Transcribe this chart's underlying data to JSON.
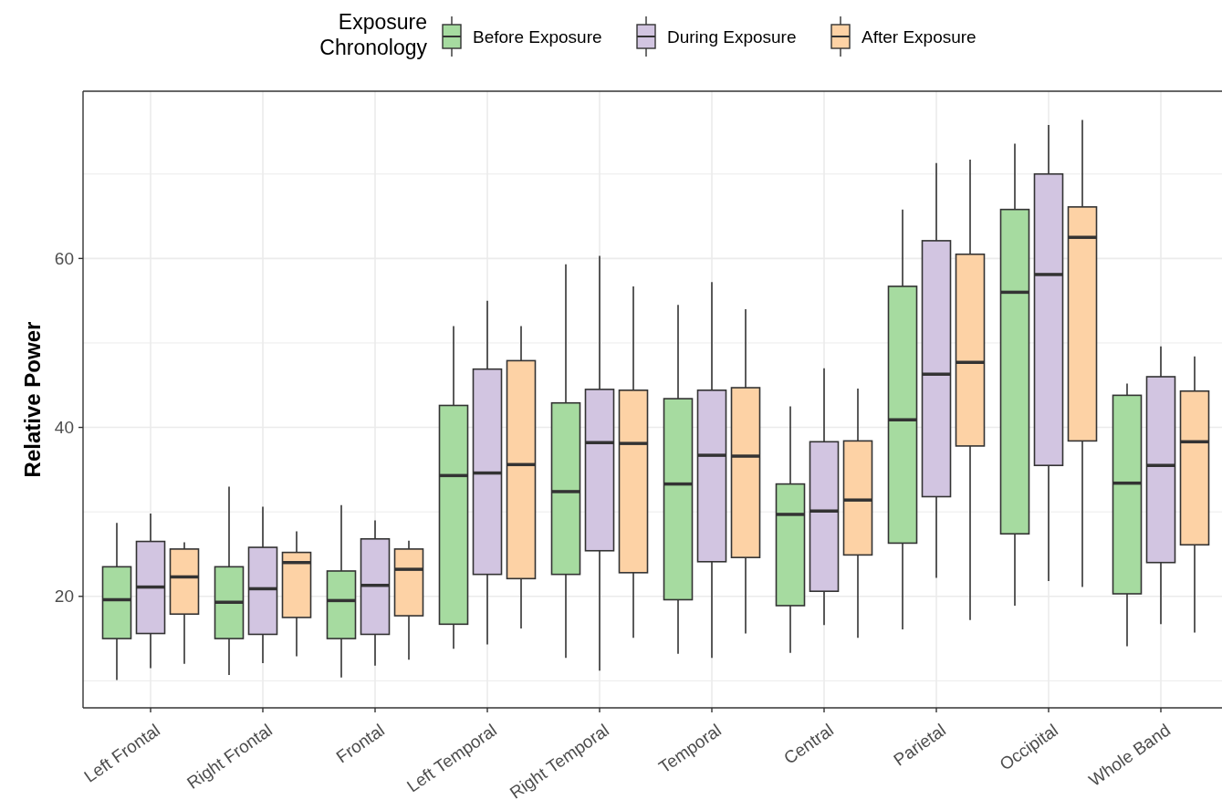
{
  "chart_data": {
    "type": "box",
    "ylabel": "Relative Power",
    "legend_title": "Exposure\nChronology",
    "legend": "top",
    "grid": true,
    "categories": [
      "Left Frontal",
      "Right Frontal",
      "Frontal",
      "Left Temporal",
      "Right Temporal",
      "Temporal",
      "Central",
      "Parietal",
      "Occipital",
      "Whole Band"
    ],
    "ylim": [
      6.8,
      79.8
    ],
    "yticks": [
      {
        "value": 10,
        "label": null
      },
      20,
      {
        "value": 30,
        "label": null
      },
      40,
      {
        "value": 50,
        "label": null
      },
      60,
      {
        "value": 70,
        "label": null
      }
    ],
    "series": [
      {
        "name": "Before Exposure",
        "color": "#a6dba0",
        "boxes": [
          {
            "low": 10.1,
            "q1": 15.0,
            "median": 19.6,
            "q3": 23.5,
            "high": 28.7
          },
          {
            "low": 10.7,
            "q1": 15.0,
            "median": 19.3,
            "q3": 23.5,
            "high": 33.0
          },
          {
            "low": 10.4,
            "q1": 15.0,
            "median": 19.5,
            "q3": 23.0,
            "high": 30.8
          },
          {
            "low": 13.8,
            "q1": 16.7,
            "median": 34.3,
            "q3": 42.6,
            "high": 52.0
          },
          {
            "low": 12.7,
            "q1": 22.6,
            "median": 32.4,
            "q3": 42.9,
            "high": 59.3
          },
          {
            "low": 13.2,
            "q1": 19.6,
            "median": 33.3,
            "q3": 43.4,
            "high": 54.5
          },
          {
            "low": 13.3,
            "q1": 18.9,
            "median": 29.7,
            "q3": 33.3,
            "high": 42.5
          },
          {
            "low": 16.1,
            "q1": 26.3,
            "median": 40.9,
            "q3": 56.7,
            "high": 65.8
          },
          {
            "low": 18.9,
            "q1": 27.4,
            "median": 56.0,
            "q3": 65.8,
            "high": 73.6
          },
          {
            "low": 14.1,
            "q1": 20.3,
            "median": 33.4,
            "q3": 43.8,
            "high": 45.2
          }
        ]
      },
      {
        "name": "During Exposure",
        "color": "#d2c5e1",
        "boxes": [
          {
            "low": 11.5,
            "q1": 15.6,
            "median": 21.1,
            "q3": 26.5,
            "high": 29.8
          },
          {
            "low": 12.1,
            "q1": 15.5,
            "median": 20.9,
            "q3": 25.8,
            "high": 30.6
          },
          {
            "low": 11.8,
            "q1": 15.5,
            "median": 21.3,
            "q3": 26.8,
            "high": 29.0
          },
          {
            "low": 14.3,
            "q1": 22.6,
            "median": 34.6,
            "q3": 46.9,
            "high": 55.0
          },
          {
            "low": 11.2,
            "q1": 25.4,
            "median": 38.2,
            "q3": 44.5,
            "high": 60.3
          },
          {
            "low": 12.7,
            "q1": 24.1,
            "median": 36.7,
            "q3": 44.4,
            "high": 57.2
          },
          {
            "low": 16.6,
            "q1": 20.6,
            "median": 30.1,
            "q3": 38.3,
            "high": 47.0
          },
          {
            "low": 22.2,
            "q1": 31.8,
            "median": 46.3,
            "q3": 62.1,
            "high": 71.3
          },
          {
            "low": 21.8,
            "q1": 35.5,
            "median": 58.1,
            "q3": 70.0,
            "high": 75.8
          },
          {
            "low": 16.7,
            "q1": 24.0,
            "median": 35.5,
            "q3": 46.0,
            "high": 49.6
          }
        ]
      },
      {
        "name": "After Exposure",
        "color": "#fdd2a5",
        "boxes": [
          {
            "low": 12.0,
            "q1": 17.9,
            "median": 22.3,
            "q3": 25.6,
            "high": 26.4
          },
          {
            "low": 12.9,
            "q1": 17.5,
            "median": 24.0,
            "q3": 25.2,
            "high": 27.7
          },
          {
            "low": 12.5,
            "q1": 17.7,
            "median": 23.2,
            "q3": 25.6,
            "high": 26.6
          },
          {
            "low": 16.2,
            "q1": 22.1,
            "median": 35.6,
            "q3": 47.9,
            "high": 52.0
          },
          {
            "low": 15.1,
            "q1": 22.8,
            "median": 38.1,
            "q3": 44.4,
            "high": 56.7
          },
          {
            "low": 15.6,
            "q1": 24.6,
            "median": 36.6,
            "q3": 44.7,
            "high": 54.0
          },
          {
            "low": 15.1,
            "q1": 24.9,
            "median": 31.4,
            "q3": 38.4,
            "high": 44.6
          },
          {
            "low": 17.2,
            "q1": 37.8,
            "median": 47.7,
            "q3": 60.5,
            "high": 71.7
          },
          {
            "low": 21.1,
            "q1": 38.4,
            "median": 62.5,
            "q3": 66.1,
            "high": 76.4
          },
          {
            "low": 15.7,
            "q1": 26.1,
            "median": 38.3,
            "q3": 44.3,
            "high": 48.4
          }
        ]
      }
    ]
  }
}
